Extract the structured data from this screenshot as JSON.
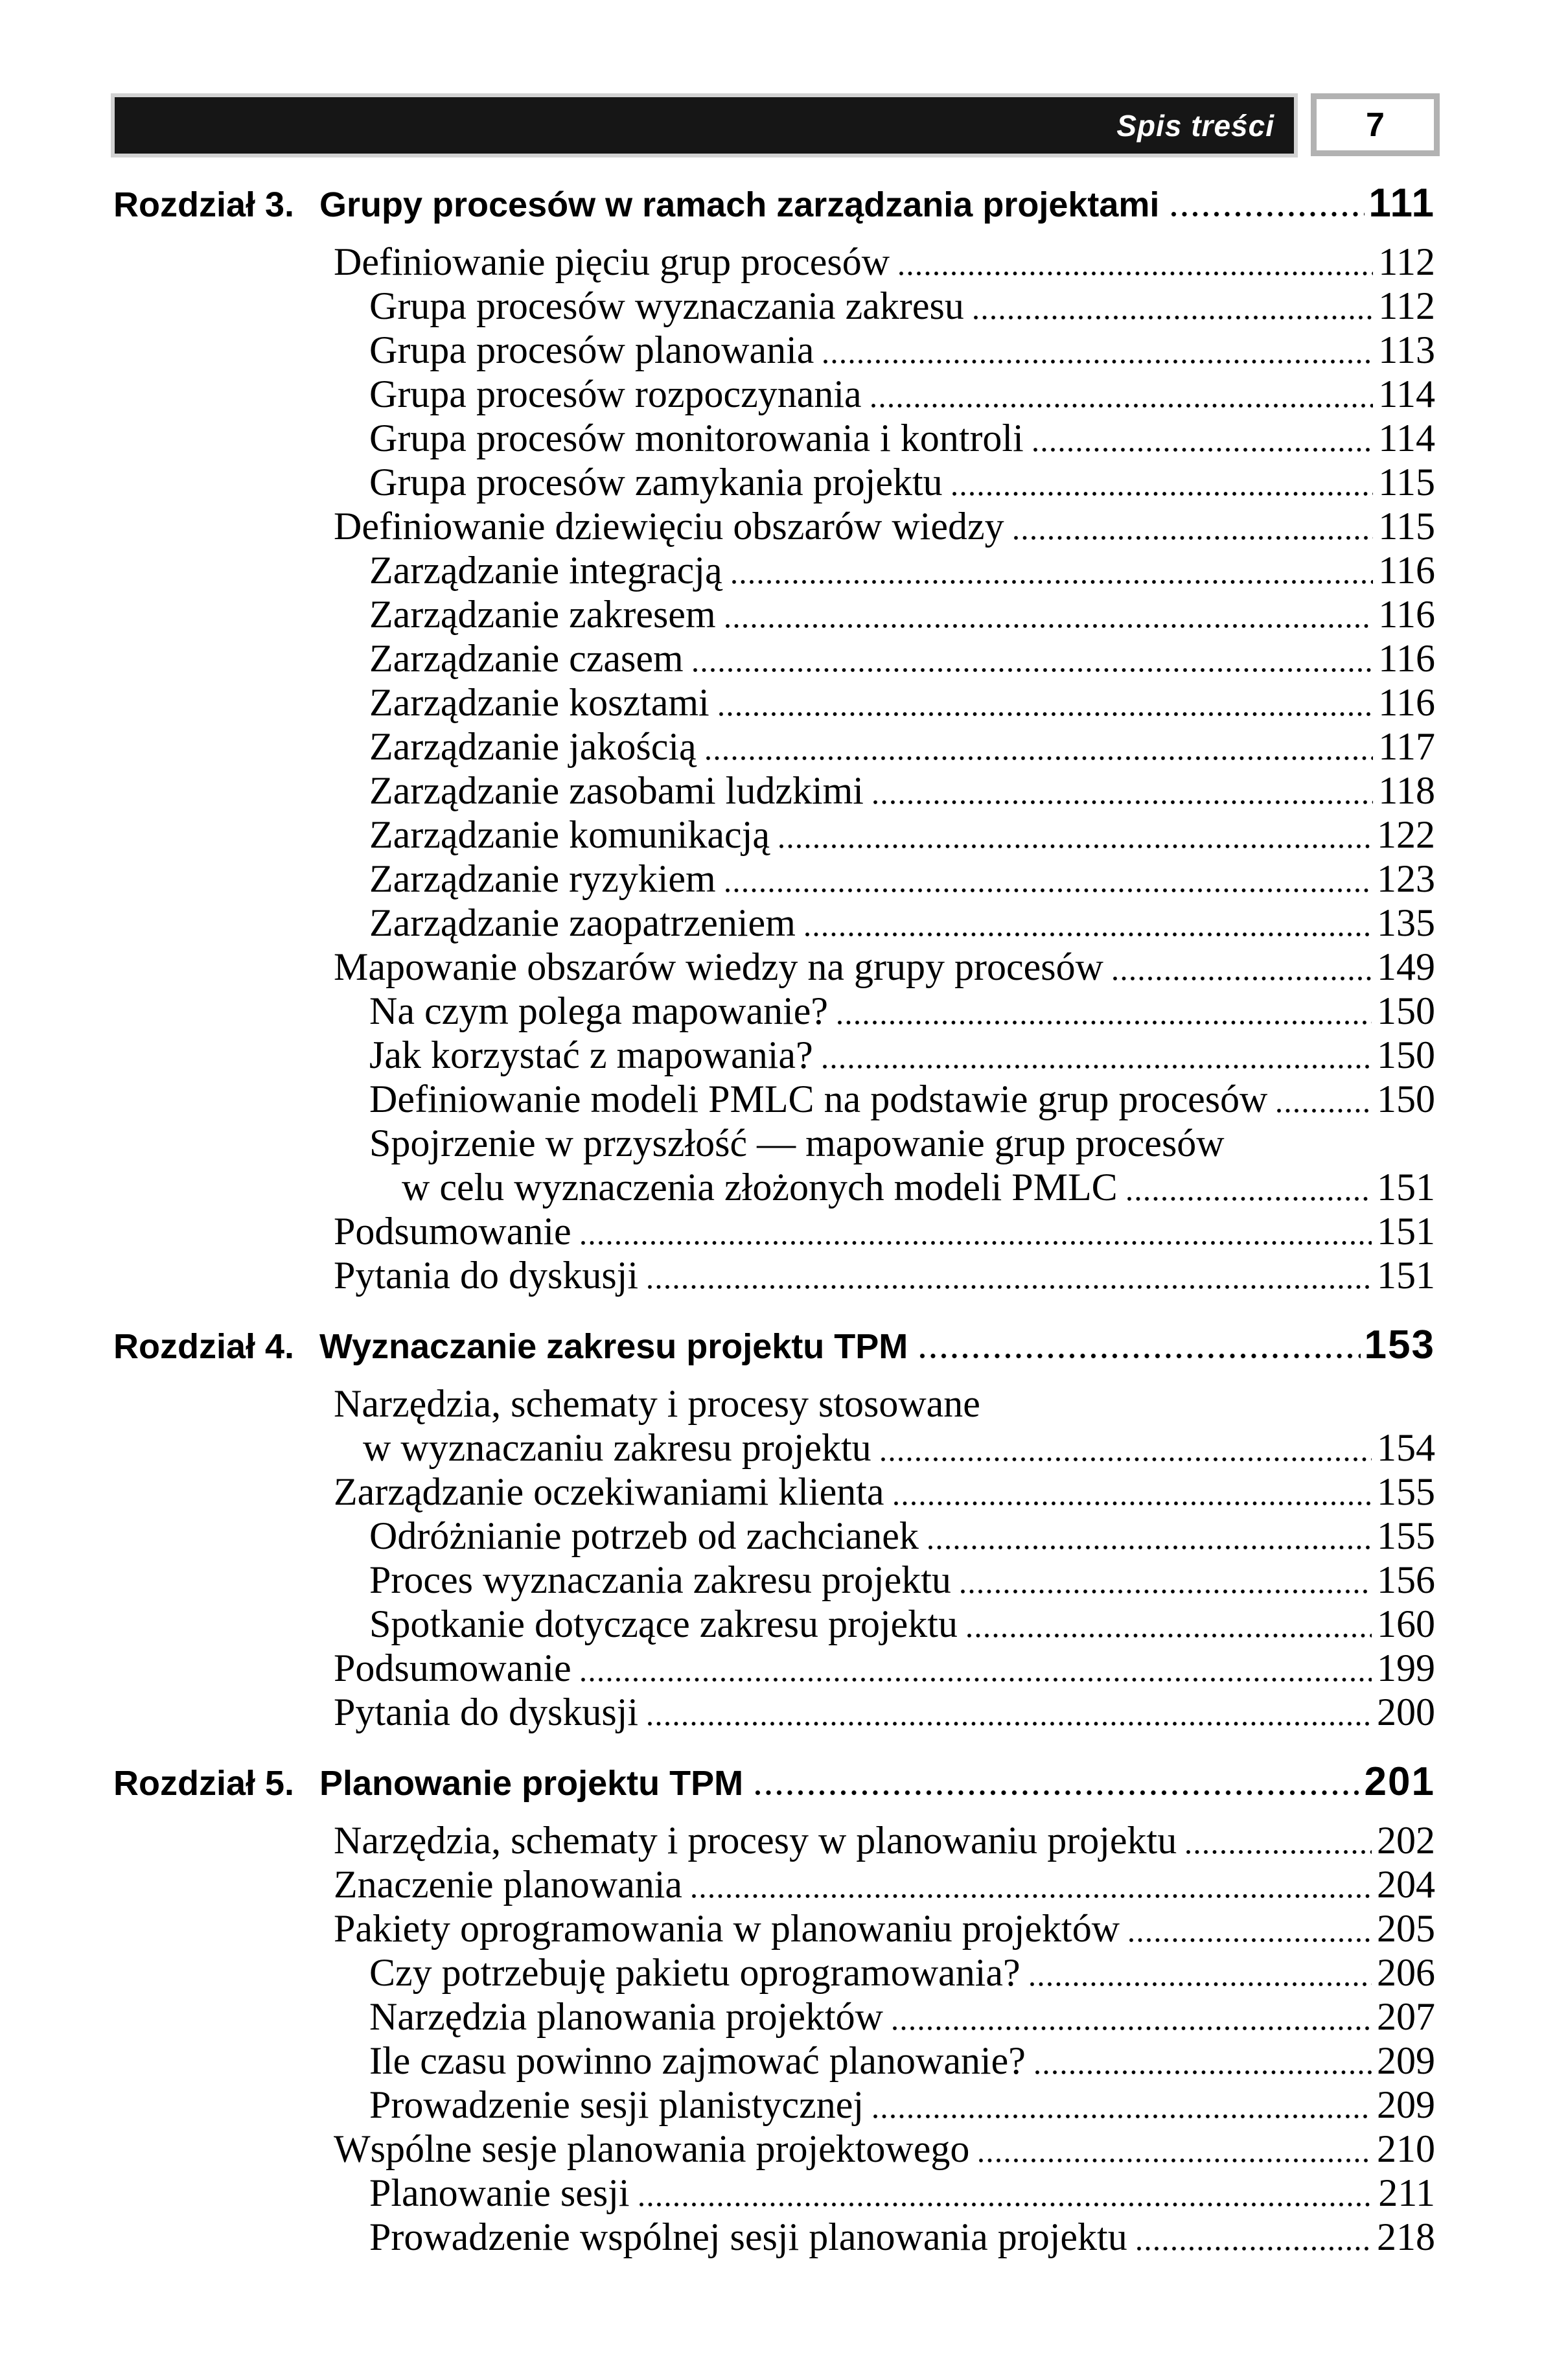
{
  "page": {
    "header_title": "Spis treści",
    "number": "7"
  },
  "toc": {
    "chapters": [
      {
        "label": "Rozdział 3.",
        "title": "Grupy procesów w ramach zarządzania projektami",
        "page": "111",
        "entries": [
          {
            "text": "Definiowanie pięciu grup procesów",
            "page": "112",
            "level": 1
          },
          {
            "text": "Grupa procesów wyznaczania zakresu",
            "page": "112",
            "level": 2
          },
          {
            "text": "Grupa procesów planowania",
            "page": "113",
            "level": 2
          },
          {
            "text": "Grupa procesów rozpoczynania",
            "page": "114",
            "level": 2
          },
          {
            "text": "Grupa procesów monitorowania i kontroli",
            "page": "114",
            "level": 2
          },
          {
            "text": "Grupa procesów zamykania projektu",
            "page": "115",
            "level": 2
          },
          {
            "text": "Definiowanie dziewięciu obszarów wiedzy",
            "page": "115",
            "level": 1
          },
          {
            "text": "Zarządzanie integracją",
            "page": "116",
            "level": 2
          },
          {
            "text": "Zarządzanie zakresem",
            "page": "116",
            "level": 2
          },
          {
            "text": "Zarządzanie czasem",
            "page": "116",
            "level": 2
          },
          {
            "text": "Zarządzanie kosztami",
            "page": "116",
            "level": 2
          },
          {
            "text": "Zarządzanie jakością",
            "page": "117",
            "level": 2
          },
          {
            "text": "Zarządzanie zasobami ludzkimi",
            "page": "118",
            "level": 2
          },
          {
            "text": "Zarządzanie komunikacją",
            "page": "122",
            "level": 2
          },
          {
            "text": "Zarządzanie ryzykiem",
            "page": "123",
            "level": 2
          },
          {
            "text": "Zarządzanie zaopatrzeniem",
            "page": "135",
            "level": 2
          },
          {
            "text": "Mapowanie obszarów wiedzy na grupy procesów",
            "page": "149",
            "level": 1
          },
          {
            "text": "Na czym polega mapowanie?",
            "page": "150",
            "level": 2
          },
          {
            "text": "Jak korzystać z mapowania?",
            "page": "150",
            "level": 2
          },
          {
            "text": "Definiowanie modeli PMLC na podstawie grup procesów",
            "page": "150",
            "level": 2
          },
          {
            "text": "Spojrzenie w przyszłość — mapowanie grup procesów",
            "page": null,
            "level": 2
          },
          {
            "text": "w celu wyznaczenia złożonych modeli PMLC",
            "page": "151",
            "level": 2,
            "cont": true
          },
          {
            "text": "Podsumowanie",
            "page": "151",
            "level": 1
          },
          {
            "text": "Pytania do dyskusji",
            "page": "151",
            "level": 1
          }
        ]
      },
      {
        "label": "Rozdział 4.",
        "title": "Wyznaczanie zakresu projektu TPM",
        "page": "153",
        "entries": [
          {
            "text": "Narzędzia, schematy i procesy stosowane",
            "page": null,
            "level": 1
          },
          {
            "text": "w wyznaczaniu zakresu projektu",
            "page": "154",
            "level": 1,
            "cont": true
          },
          {
            "text": "Zarządzanie oczekiwaniami klienta",
            "page": "155",
            "level": 1
          },
          {
            "text": "Odróżnianie potrzeb od zachcianek",
            "page": "155",
            "level": 2
          },
          {
            "text": "Proces wyznaczania zakresu projektu",
            "page": "156",
            "level": 2
          },
          {
            "text": "Spotkanie dotyczące zakresu projektu",
            "page": "160",
            "level": 2
          },
          {
            "text": "Podsumowanie",
            "page": "199",
            "level": 1
          },
          {
            "text": "Pytania do dyskusji",
            "page": "200",
            "level": 1
          }
        ]
      },
      {
        "label": "Rozdział 5.",
        "title": "Planowanie projektu TPM",
        "page": "201",
        "entries": [
          {
            "text": "Narzędzia, schematy i procesy w planowaniu projektu",
            "page": "202",
            "level": 1
          },
          {
            "text": "Znaczenie planowania",
            "page": "204",
            "level": 1
          },
          {
            "text": "Pakiety oprogramowania w planowaniu projektów",
            "page": "205",
            "level": 1
          },
          {
            "text": "Czy potrzebuję pakietu oprogramowania?",
            "page": "206",
            "level": 2
          },
          {
            "text": "Narzędzia planowania projektów",
            "page": "207",
            "level": 2
          },
          {
            "text": "Ile czasu powinno zajmować planowanie?",
            "page": "209",
            "level": 2
          },
          {
            "text": "Prowadzenie sesji planistycznej",
            "page": "209",
            "level": 2
          },
          {
            "text": "Wspólne sesje planowania projektowego",
            "page": "210",
            "level": 1
          },
          {
            "text": "Planowanie sesji",
            "page": "211",
            "level": 2
          },
          {
            "text": "Prowadzenie wspólnej sesji planowania projektu",
            "page": "218",
            "level": 2
          }
        ]
      }
    ]
  }
}
